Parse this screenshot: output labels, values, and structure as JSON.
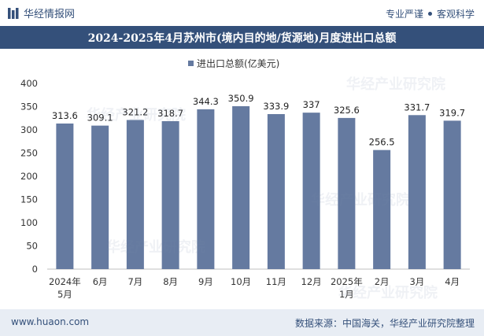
{
  "header": {
    "brand": "华经情报网",
    "slogan_left": "专业严谨",
    "slogan_right": "客观科学"
  },
  "watermark": "华经产业研究院",
  "chart_data": {
    "type": "bar",
    "title": "2024-2025年4月苏州市(境内目的地/货源地)月度进出口总额",
    "legend": "进出口总额(亿美元)",
    "categories": [
      "2024年5月",
      "6月",
      "7月",
      "8月",
      "9月",
      "10月",
      "11月",
      "12月",
      "2025年1月",
      "2月",
      "3月",
      "4月"
    ],
    "values": [
      313.6,
      309.1,
      321.2,
      318.7,
      344.3,
      350.9,
      333.9,
      337,
      325.6,
      256.5,
      331.7,
      319.7
    ],
    "ylim": [
      0,
      400
    ],
    "yticks": [
      0,
      50,
      100,
      150,
      200,
      250,
      300,
      350,
      400
    ],
    "bar_color": "#657aa0",
    "xlabel": "",
    "ylabel": ""
  },
  "footer": {
    "url": "www.huaon.com",
    "source": "数据来源：中国海关，华经产业研究院整理"
  }
}
